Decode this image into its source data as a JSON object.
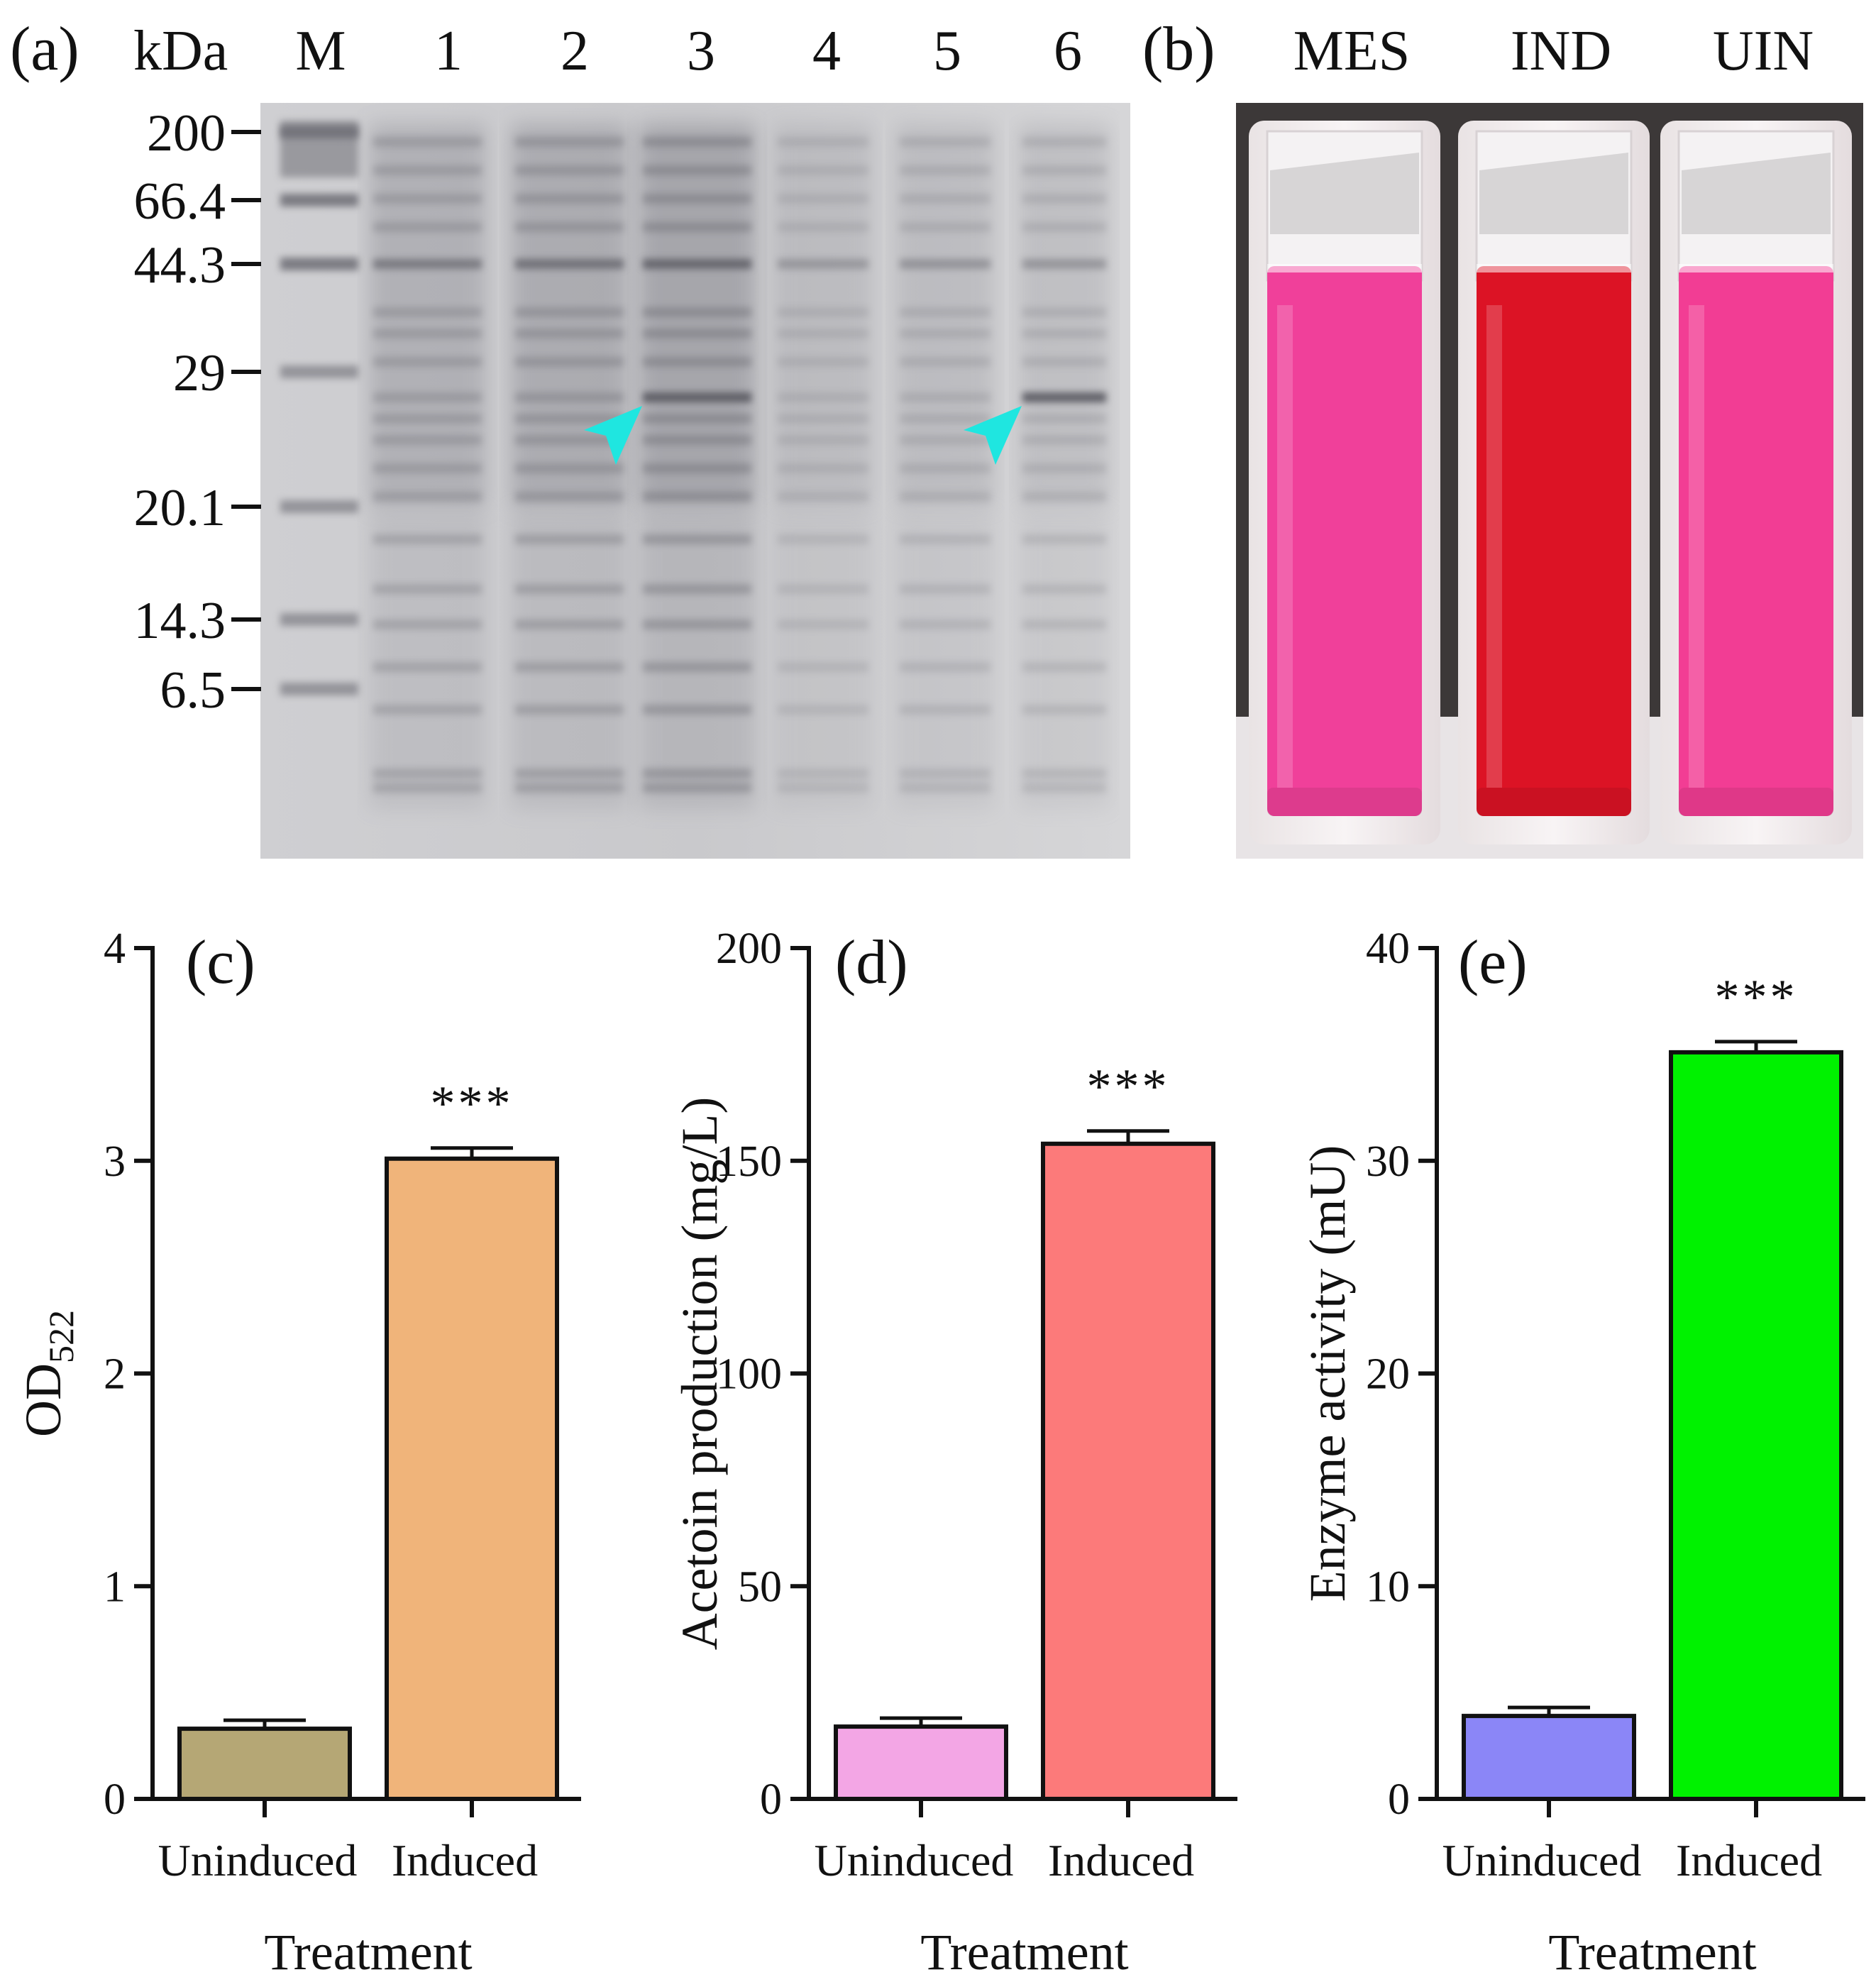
{
  "panels": {
    "a": {
      "label": "(a)",
      "unit": "kDa",
      "lanes": [
        "M",
        "1",
        "2",
        "3",
        "4",
        "5",
        "6"
      ],
      "markers": [
        "200",
        "66.4",
        "44.3",
        "29",
        "20.1",
        "14.3",
        "6.5"
      ],
      "arrow_color": "#1fe6e0"
    },
    "b": {
      "label": "(b)",
      "samples": [
        "MES",
        "IND",
        "UIN"
      ],
      "sample_colors": [
        "#f0409a",
        "#dc1325",
        "#f23d94"
      ]
    }
  },
  "chart_data": [
    {
      "panel": "(c)",
      "type": "bar",
      "categories": [
        "Uninduced",
        "Induced"
      ],
      "values": [
        0.33,
        3.01
      ],
      "errors": [
        0.04,
        0.05
      ],
      "colors": [
        "#b5a775",
        "#f0b47a"
      ],
      "significance": [
        "",
        "***"
      ],
      "ylabel": "OD",
      "ylabel_sub": "522",
      "xlabel": "Treatment",
      "ylim": [
        0,
        4
      ],
      "yticks": [
        0,
        1,
        2,
        3,
        4
      ],
      "ytick_labels": [
        "0",
        "1",
        "2",
        "3",
        "4"
      ]
    },
    {
      "panel": "(d)",
      "type": "bar",
      "categories": [
        "Uninduced",
        "Induced"
      ],
      "values": [
        17,
        154
      ],
      "errors": [
        2,
        3
      ],
      "colors": [
        "#f3a6e5",
        "#fc7a7a"
      ],
      "significance": [
        "",
        "***"
      ],
      "ylabel": "Acetoin production (mg/L)",
      "ylabel_sub": "",
      "xlabel": "Treatment",
      "ylim": [
        0,
        200
      ],
      "yticks": [
        0,
        50,
        100,
        150,
        200
      ],
      "ytick_labels": [
        "0",
        "50",
        "100",
        "150",
        "200"
      ]
    },
    {
      "panel": "(e)",
      "type": "bar",
      "categories": [
        "Uninduced",
        "Induced"
      ],
      "values": [
        3.9,
        35.1
      ],
      "errors": [
        0.4,
        0.5
      ],
      "colors": [
        "#8b86f7",
        "#00f200"
      ],
      "significance": [
        "",
        "***"
      ],
      "ylabel": "Enzyme activity (mU)",
      "ylabel_sub": "",
      "xlabel": "Treatment",
      "ylim": [
        0,
        40
      ],
      "yticks": [
        0,
        10,
        20,
        30,
        40
      ],
      "ytick_labels": [
        "0",
        "10",
        "20",
        "30",
        "40"
      ]
    }
  ]
}
